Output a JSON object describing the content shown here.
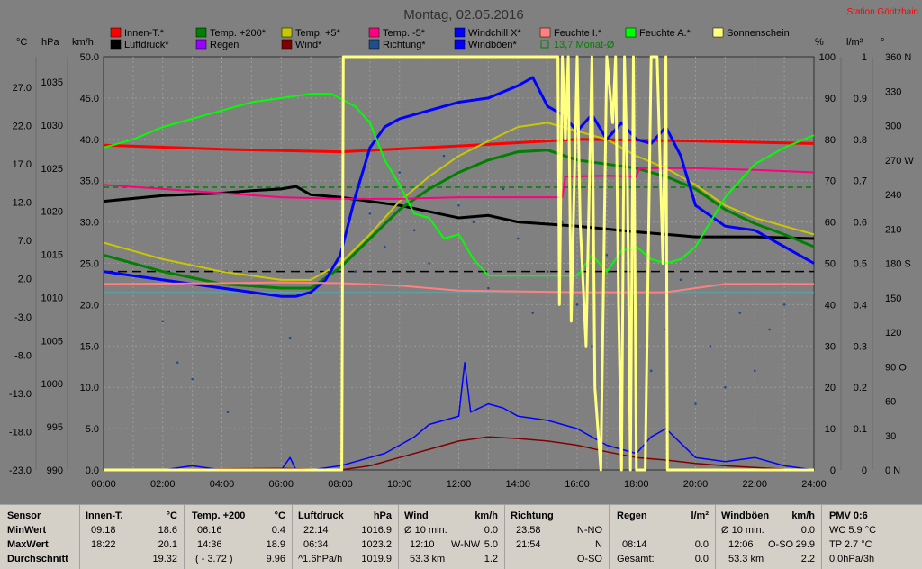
{
  "title": "Montag, 02.05.2016",
  "station": "Station Göritzhain",
  "colors": {
    "innen": "#ff0000",
    "luftdruck": "#000000",
    "temp200": "#008000",
    "regen": "#9900ff",
    "temp5": "#c8c800",
    "wind": "#800000",
    "tempm5": "#ff0080",
    "richtung": "#1f4e8c",
    "feuchteI": "#ff8080",
    "windboeen": "#0000ff",
    "windchill": "#0000ff",
    "feuchteA": "#00ff00",
    "monat": "#008000",
    "sonne": "#ffff80"
  },
  "legend": [
    {
      "label": "Innen-T.*",
      "color": "#ff0000"
    },
    {
      "label": "Temp. +200*",
      "color": "#008000"
    },
    {
      "label": "Temp. +5*",
      "color": "#c8c800"
    },
    {
      "label": "Temp. -5*",
      "color": "#ff0080"
    },
    {
      "label": "Windchill X*",
      "color": "#0000ff"
    },
    {
      "label": "Feuchte I.*",
      "color": "#ff8080"
    },
    {
      "label": "Feuchte A.*",
      "color": "#00ff00"
    },
    {
      "label": "Sonnenschein",
      "color": "#ffff80"
    },
    {
      "label": "Luftdruck*",
      "color": "#000000"
    },
    {
      "label": "Regen",
      "color": "#9900ff"
    },
    {
      "label": "Wind*",
      "color": "#800000"
    },
    {
      "label": "Richtung*",
      "color": "#1f4e8c"
    },
    {
      "label": "Windböen*",
      "color": "#0000ff"
    },
    {
      "label": "13,7 Monat-Ø",
      "color": "#008000"
    }
  ],
  "units": {
    "left1": "°C",
    "left2": "hPa",
    "left3": "km/h",
    "right1": "%",
    "right2": "l/m²",
    "right3": "°"
  },
  "chart_data": {
    "type": "line",
    "x_ticks": [
      "00:00",
      "02:00",
      "04:00",
      "06:00",
      "08:00",
      "10:00",
      "12:00",
      "14:00",
      "16:00",
      "18:00",
      "20:00",
      "22:00",
      "24:00"
    ],
    "axes": {
      "celsius": [
        "27.0",
        "22.0",
        "17.0",
        "12.0",
        "7.0",
        "2.0",
        "-3.0",
        "-8.0",
        "-13.0",
        "-18.0",
        "-23.0"
      ],
      "hpa": [
        "1035",
        "1030",
        "1025",
        "1020",
        "1015",
        "1010",
        "1005",
        "1000",
        "995",
        "990"
      ],
      "kmh": [
        "50.0",
        "45.0",
        "40.0",
        "35.0",
        "30.0",
        "25.0",
        "20.0",
        "15.0",
        "10.0",
        "5.0",
        "0.0"
      ],
      "percent": [
        "100",
        "90",
        "80",
        "70",
        "60",
        "50",
        "40",
        "30",
        "20",
        "10",
        "0"
      ],
      "lm2": [
        "1",
        "0.9",
        "0.8",
        "0.7",
        "0.6",
        "0.5",
        "0.4",
        "0.3",
        "0.2",
        "0.1",
        "0"
      ],
      "degree": [
        "360 N",
        "330",
        "300",
        "270 W",
        "240",
        "210",
        "180 S",
        "150",
        "120",
        "90 O",
        "60",
        "30",
        "0 N"
      ]
    },
    "kmh_range": [
      0,
      50
    ],
    "series": [
      {
        "name": "Innen-T.*",
        "color": "#ff0000",
        "width": 3,
        "x": [
          0,
          4,
          8,
          12,
          16,
          20,
          24
        ],
        "y": [
          39.3,
          38.8,
          38.5,
          39.2,
          40.0,
          39.8,
          39.5
        ]
      },
      {
        "name": "Luftdruck*",
        "color": "#000000",
        "width": 3,
        "x": [
          0,
          2,
          4,
          5,
          6,
          6.5,
          7,
          8,
          10,
          12,
          13,
          14,
          16,
          18,
          20,
          22,
          24
        ],
        "y": [
          32.5,
          33.2,
          33.5,
          33.8,
          34.0,
          34.3,
          33.3,
          33.0,
          32.0,
          30.5,
          30.8,
          30.0,
          29.5,
          28.8,
          28.2,
          28.2,
          28.0
        ]
      },
      {
        "name": "Temp. +200*",
        "color": "#008000",
        "width": 3,
        "x": [
          0,
          2,
          4,
          6,
          7,
          8,
          9,
          10,
          11,
          12,
          13,
          14,
          15,
          16,
          17,
          18,
          19,
          20,
          21,
          22,
          23,
          24
        ],
        "y": [
          26.0,
          24.0,
          22.5,
          22.0,
          22.0,
          24.5,
          28.0,
          31.5,
          34.0,
          36.0,
          37.5,
          38.5,
          38.7,
          37.5,
          37.0,
          36.5,
          35.5,
          34.0,
          31.5,
          29.8,
          28.5,
          27.0
        ]
      },
      {
        "name": "Temp. +5*",
        "color": "#c8c800",
        "width": 2,
        "x": [
          0,
          2,
          4,
          6,
          7,
          8,
          9,
          10,
          11,
          12,
          13,
          14,
          15,
          16,
          17,
          18,
          19,
          20,
          21,
          22,
          23,
          24
        ],
        "y": [
          27.5,
          25.5,
          24.0,
          23.0,
          23.0,
          25.0,
          28.5,
          32.5,
          35.5,
          38.0,
          39.8,
          41.5,
          42.0,
          41.0,
          40.0,
          38.0,
          36.5,
          34.5,
          32.0,
          30.5,
          29.5,
          28.5
        ]
      },
      {
        "name": "Temp. -5*",
        "color": "#ff0080",
        "width": 2,
        "x": [
          0,
          2,
          4,
          6,
          8,
          10,
          12,
          15.5,
          15.6,
          17,
          18,
          18.1,
          20,
          22,
          24
        ],
        "y": [
          34.5,
          34.0,
          33.5,
          33.0,
          32.8,
          32.8,
          33.0,
          33.0,
          35.5,
          35.6,
          35.5,
          36.5,
          36.5,
          36.3,
          36.0
        ]
      },
      {
        "name": "Windchill X*",
        "color": "#0000ff",
        "width": 3,
        "x": [
          0,
          2,
          4,
          6,
          6.5,
          7,
          7.5,
          8,
          8.5,
          9,
          9.5,
          10,
          11,
          12,
          13,
          14,
          14.5,
          15,
          15.5,
          16,
          16.5,
          17,
          17.5,
          18,
          18.5,
          19,
          19.5,
          20,
          21,
          22,
          23,
          24
        ],
        "y": [
          24.0,
          23.0,
          22.0,
          21.0,
          21.0,
          21.5,
          23.0,
          26.0,
          33.0,
          39.0,
          41.5,
          42.5,
          43.5,
          44.5,
          45.0,
          46.5,
          47.5,
          44.0,
          43.0,
          41.0,
          43.0,
          40.0,
          42.0,
          40.0,
          39.5,
          41.5,
          38.0,
          32.0,
          29.5,
          29.0,
          27.0,
          25.0
        ]
      },
      {
        "name": "Feuchte A.*",
        "color": "#00ff00",
        "width": 2,
        "x": [
          0,
          1,
          2,
          3,
          4,
          5,
          6,
          7,
          7.7,
          8.5,
          9,
          9.5,
          10,
          10.5,
          11,
          11.5,
          12,
          12.5,
          13,
          14,
          15,
          16,
          16.5,
          17,
          17.5,
          18,
          18.5,
          19,
          19.5,
          20,
          20.5,
          21,
          22,
          23,
          24
        ],
        "y": [
          39.0,
          40.0,
          41.5,
          42.5,
          43.5,
          44.5,
          45.0,
          45.5,
          45.5,
          44.0,
          42.0,
          37.5,
          34.5,
          31.0,
          30.5,
          28.0,
          28.5,
          25.5,
          23.5,
          23.5,
          23.5,
          23.5,
          26.0,
          24.0,
          26.5,
          27.0,
          25.5,
          25.0,
          25.5,
          27.0,
          30.0,
          33.0,
          37.0,
          39.0,
          40.5
        ]
      },
      {
        "name": "Feuchte I.*",
        "color": "#ff8080",
        "width": 2,
        "x": [
          0,
          4,
          6,
          8,
          10,
          12,
          16,
          19,
          20,
          21,
          22,
          24
        ],
        "y": [
          22.5,
          22.6,
          22.7,
          22.6,
          22.3,
          21.7,
          21.5,
          21.5,
          22.0,
          22.5,
          22.5,
          22.5
        ]
      },
      {
        "name": "Wind*",
        "color": "#800000",
        "width": 1.5,
        "x": [
          0,
          6,
          7,
          8,
          9,
          10,
          11,
          12,
          13,
          14,
          15,
          16,
          17,
          18,
          19,
          20,
          21,
          22,
          23,
          24
        ],
        "y": [
          0,
          0.2,
          0.1,
          0,
          0.5,
          1.5,
          2.5,
          3.5,
          4.0,
          3.8,
          3.5,
          3.0,
          2.2,
          1.5,
          1.2,
          0.8,
          0.5,
          0.3,
          0.1,
          0
        ]
      },
      {
        "name": "Windböen*",
        "color": "#0000ff",
        "width": 1.5,
        "x": [
          0,
          2,
          3,
          4,
          6,
          6.3,
          6.5,
          7,
          8,
          8.5,
          9,
          9.5,
          10,
          10.5,
          11,
          11.5,
          12,
          12.2,
          12.4,
          13,
          13.5,
          14,
          15,
          16,
          16.5,
          17,
          17.5,
          18,
          18.5,
          19,
          20,
          21,
          22,
          23,
          24
        ],
        "y": [
          0,
          0,
          0.5,
          0,
          0,
          1.5,
          0,
          0,
          0.5,
          1.0,
          1.5,
          2.0,
          3.0,
          4.0,
          5.5,
          6.0,
          6.5,
          13.0,
          7.0,
          8.0,
          7.5,
          6.5,
          6.0,
          5.0,
          4.0,
          3.0,
          2.5,
          2.0,
          4.0,
          5.0,
          1.5,
          1.0,
          1.5,
          0.5,
          0
        ]
      },
      {
        "name": "Sonnenschein",
        "color": "#ffff80",
        "width": 3,
        "x": [
          0,
          8.05,
          8.1,
          15.35,
          15.4,
          15.5,
          15.6,
          15.7,
          15.8,
          16.0,
          16.1,
          16.3,
          16.5,
          16.6,
          16.8,
          17.0,
          17.2,
          17.3,
          17.4,
          17.5,
          17.6,
          17.7,
          17.8,
          17.9,
          18.0,
          18.3,
          18.5,
          18.7,
          18.9,
          19.0,
          19.05,
          24
        ],
        "y": [
          0,
          0,
          50,
          50,
          20,
          50,
          40,
          50,
          18,
          50,
          30,
          15,
          50,
          10,
          0,
          50,
          42,
          50,
          20,
          0,
          50,
          35,
          0,
          50,
          0,
          0,
          50,
          50,
          25,
          50,
          0,
          0
        ]
      }
    ],
    "reference_lines": [
      {
        "name": "13,7 Monat-Ø",
        "y": 34.2,
        "color": "#008000",
        "dash": "6,4"
      },
      {
        "name": "50% Feuchte",
        "y": 24.0,
        "color": "#000000",
        "dash": "10,6"
      },
      {
        "name": "Basis",
        "y": 21.5,
        "color": "#5f9ea0",
        "dash": ""
      }
    ],
    "direction_dots": {
      "color": "#1f4e8c",
      "x": [
        2,
        2.5,
        3,
        4.2,
        6.3,
        8.0,
        8.5,
        9,
        9.5,
        10,
        10.5,
        11,
        11.5,
        12,
        12.5,
        13,
        13.5,
        14,
        14.5,
        15,
        15.5,
        16,
        16.5,
        17,
        17.5,
        18,
        18.5,
        19,
        19.5,
        20,
        20.5,
        21,
        21.5,
        22,
        22.5,
        23
      ],
      "y": [
        18,
        13,
        11,
        7,
        16,
        26,
        24,
        31,
        27,
        36,
        29,
        25,
        38,
        32,
        30,
        22,
        34,
        28,
        19,
        24,
        30,
        20,
        15,
        26,
        14,
        21,
        12,
        17,
        23,
        8,
        15,
        10,
        19,
        12,
        17,
        20
      ]
    }
  },
  "stats": {
    "header": {
      "sensor": "Sensor",
      "innen": "Innen-T.",
      "innen_unit": "°C",
      "temp200": "Temp. +200",
      "temp200_unit": "°C",
      "luft": "Luftdruck",
      "luft_unit": "hPa",
      "wind": "Wind",
      "wind_unit": "km/h",
      "richtung": "Richtung",
      "regen": "Regen",
      "regen_unit": "l/m²",
      "boeen": "Windböen",
      "boeen_unit": "km/h",
      "pmv": "PMV 0:6"
    },
    "labels": {
      "min": "MinWert",
      "max": "MaxWert",
      "avg": "Durchschnitt"
    },
    "innen": {
      "min_t": "09:18",
      "min_v": "18.6",
      "max_t": "18:22",
      "max_v": "20.1",
      "avg": "19.32"
    },
    "temp200": {
      "min_t": "06:16",
      "min_v": "0.4",
      "max_t": "14:36",
      "max_v": "18.9",
      "avg_t": "( - 3.72 )",
      "avg": "9.96"
    },
    "luft": {
      "min_t": "22:14",
      "min_v": "1016.9",
      "max_t": "06:34",
      "max_v": "1023.2",
      "avg_t": "^1.6hPa/h",
      "avg": "1019.9"
    },
    "wind": {
      "min_t": "Ø 10 min.",
      "min_v": "0.0",
      "max_t": "12:10",
      "max_d": "W-NW",
      "max_v": "5.0",
      "avg_t": "53.3 km",
      "avg": "1.2"
    },
    "richtung": {
      "min_t": "23:58",
      "min_v": "N-NO",
      "max_t": "21:54",
      "max_v": "N",
      "avg": "O-SO"
    },
    "regen": {
      "max_t": "08:14",
      "max_v": "0.0",
      "min_v": "0.0",
      "avg_t": "Gesamt:",
      "avg": "0.0"
    },
    "boeen": {
      "min_t": "Ø 10 min.",
      "min_v": "0.0",
      "max_t": "12:06",
      "max_d": "O-SO",
      "max_v": "29.9",
      "avg_t": "53.3 km",
      "avg": "2.2"
    },
    "pmv": {
      "l1": "WC 5.9 °C",
      "l2": "TP 2.7 °C",
      "l3": "0.0hPa/3h"
    }
  }
}
